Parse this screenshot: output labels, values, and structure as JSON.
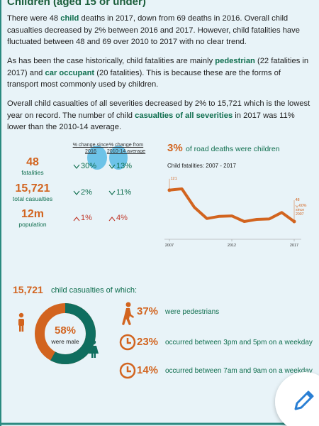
{
  "header": {
    "title": "Children (aged 15 or under)"
  },
  "paragraphs": [
    [
      {
        "text": "There were 48 "
      },
      {
        "text": "child",
        "emphasis": true
      },
      {
        "text": " deaths in 2017, down from 69 deaths in 2016. Overall child casualties decreased by 2% between 2016 and 2017. However, child fatalities have fluctuated between 48 and 69 over 2010 to 2017 with no clear trend."
      }
    ],
    [
      {
        "text": "As has been the case historically, child fatalities are mainly "
      },
      {
        "text": "pedestrian",
        "emphasis": true
      },
      {
        "text": " (22 fatalities in 2017) and "
      },
      {
        "text": "car occupant",
        "emphasis": true
      },
      {
        "text": " (20 fatalities). This is because these are the forms of transport most commonly used by children."
      }
    ],
    [
      {
        "text": "Overall child casualties of all severities decreased by 2% to 15,721 which is the lowest year on record. The number of child "
      },
      {
        "text": "casualties of all severities",
        "emphasis": true
      },
      {
        "text": " in 2017 was 11% lower than the 2010-14 average."
      }
    ]
  ],
  "stats": {
    "columns": [
      "% change since 2016",
      "% change from 2010-14 average"
    ],
    "rows": [
      {
        "value": "48",
        "label": "fatalities",
        "changes": [
          {
            "text": "30%",
            "direction": "down"
          },
          {
            "text": "13%",
            "direction": "down"
          }
        ]
      },
      {
        "value": "15,721",
        "label": "total casualties",
        "changes": [
          {
            "text": "2%",
            "direction": "down"
          },
          {
            "text": "11%",
            "direction": "down"
          }
        ]
      },
      {
        "value": "12m",
        "label": "population",
        "changes": [
          {
            "text": "1%",
            "direction": "up"
          },
          {
            "text": "4%",
            "direction": "up"
          }
        ]
      }
    ]
  },
  "road_deaths": {
    "value": "3%",
    "text": "of road deaths were children"
  },
  "chart": {
    "type": "line",
    "title": "Child fatalities: 2007 - 2017",
    "color": "#d2641f",
    "x": [
      2007,
      2008,
      2009,
      2010,
      2011,
      2012,
      2013,
      2014,
      2015,
      2016,
      2017
    ],
    "values": [
      121,
      124,
      81,
      55,
      60,
      61,
      48,
      53,
      54,
      69,
      48
    ],
    "xticks": [
      2007,
      2012,
      2017
    ],
    "annotation": [
      "60%",
      "since",
      "2007"
    ]
  },
  "breakdown": {
    "total": "15,721",
    "total_text": "child casualties of which:",
    "donut": {
      "value": 58,
      "label": "58%",
      "text": "were male"
    },
    "items": [
      {
        "value": "37%",
        "text": "were pedestrians",
        "icon": "pedestrian"
      },
      {
        "value": "23%",
        "text": "occurred between 3pm and 5pm on a weekday",
        "icon": "clock"
      },
      {
        "value": "14%",
        "text": "occurred between 7am and 9am on a weekday",
        "icon": "clock"
      }
    ]
  }
}
